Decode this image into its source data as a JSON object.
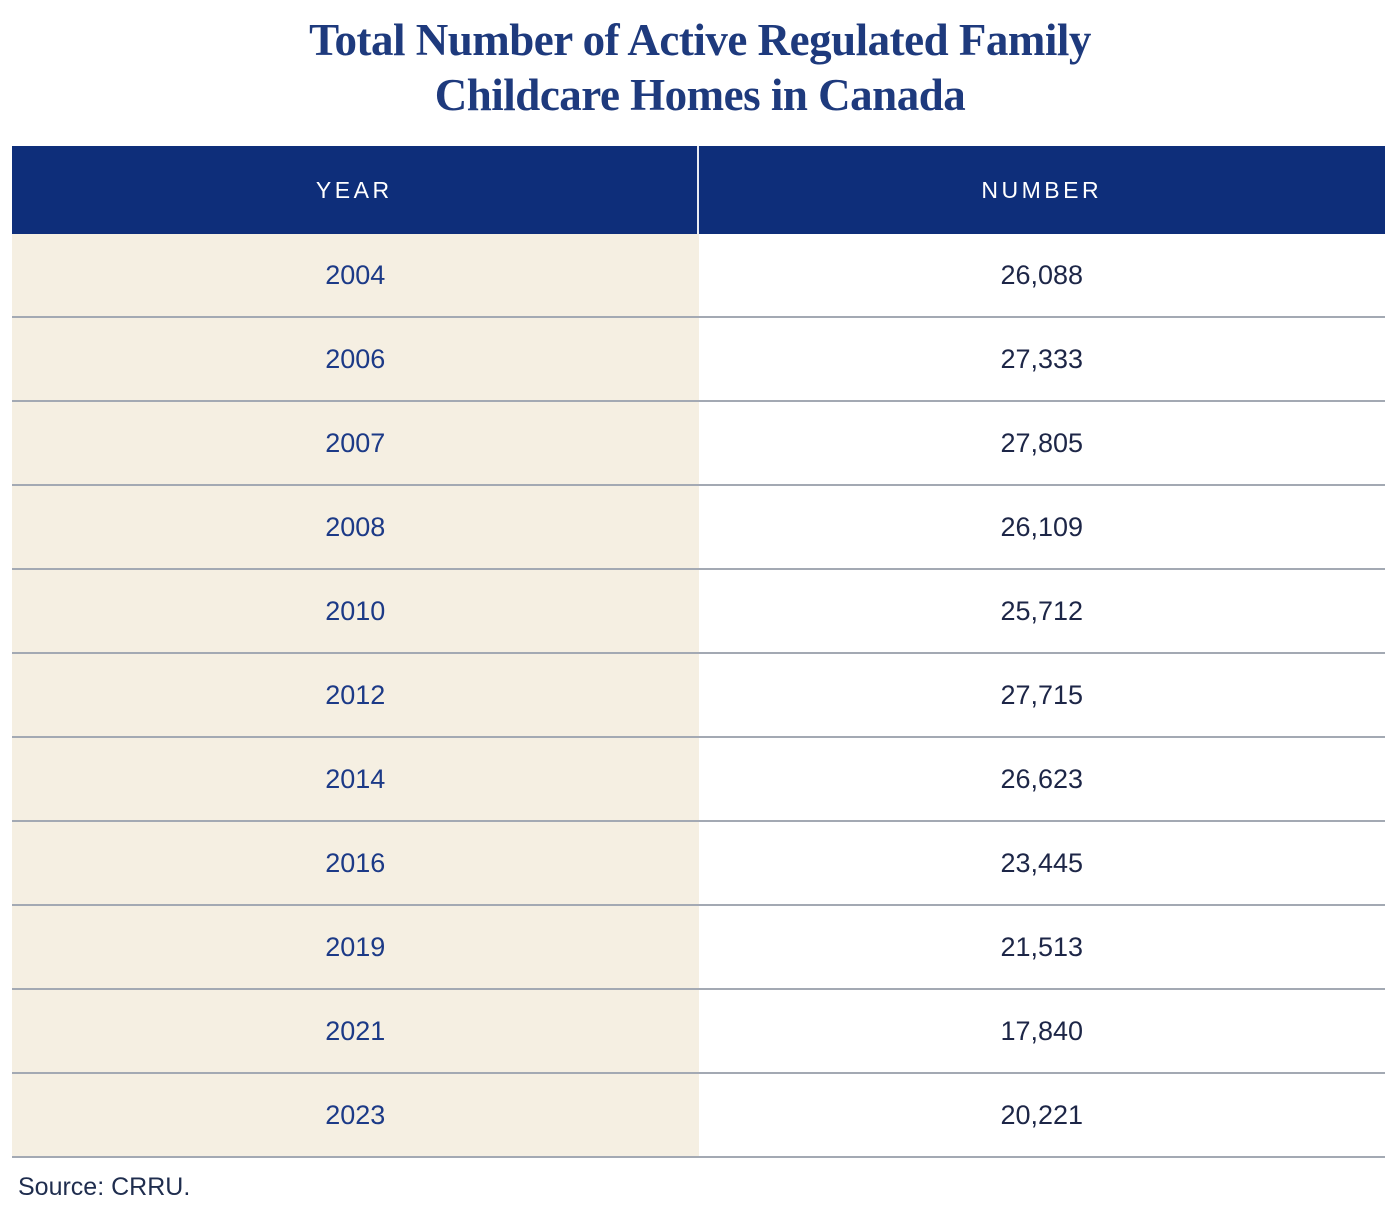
{
  "title": {
    "line1": "Total Number of Active Regulated Family",
    "line2": "Childcare Homes in Canada"
  },
  "table": {
    "columns": {
      "year": "YEAR",
      "number": "NUMBER"
    },
    "rows": [
      {
        "year": "2004",
        "number": "26,088"
      },
      {
        "year": "2006",
        "number": "27,333"
      },
      {
        "year": "2007",
        "number": "27,805"
      },
      {
        "year": "2008",
        "number": "26,109"
      },
      {
        "year": "2010",
        "number": "25,712"
      },
      {
        "year": "2012",
        "number": "27,715"
      },
      {
        "year": "2014",
        "number": "26,623"
      },
      {
        "year": "2016",
        "number": "23,445"
      },
      {
        "year": "2019",
        "number": "21,513"
      },
      {
        "year": "2021",
        "number": "17,840"
      },
      {
        "year": "2023",
        "number": "20,221"
      }
    ]
  },
  "source": "Source: CRRU.",
  "colors": {
    "header_background": "#0e2e7a",
    "year_column_background": "#f5efe2",
    "number_column_background": "#ffffff",
    "title_text": "#1e3a7d",
    "year_text": "#1c3a87",
    "number_text": "#1d2647",
    "header_text": "#ffffff",
    "row_separator": "#a3a9b3",
    "source_text": "#1f2d4e"
  },
  "chart_data": {
    "type": "table",
    "title": "Total Number of Active Regulated Family Childcare Homes in Canada",
    "columns": [
      "YEAR",
      "NUMBER"
    ],
    "categories": [
      "2004",
      "2006",
      "2007",
      "2008",
      "2010",
      "2012",
      "2014",
      "2016",
      "2019",
      "2021",
      "2023"
    ],
    "values": [
      26088,
      27333,
      27805,
      26109,
      25712,
      27715,
      26623,
      23445,
      21513,
      17840,
      20221
    ],
    "source": "Source: CRRU.",
    "layout": {
      "header_position": "top",
      "grid": "horizontal-lines"
    }
  }
}
